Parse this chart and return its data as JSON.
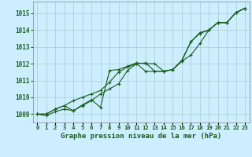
{
  "title": "Graphe pression niveau de la mer (hPa)",
  "bg_color": "#cceeff",
  "grid_color": "#aacccc",
  "line_color": "#1a5c1a",
  "x_labels": [
    "0",
    "1",
    "2",
    "3",
    "4",
    "5",
    "6",
    "7",
    "8",
    "9",
    "10",
    "11",
    "12",
    "13",
    "14",
    "15",
    "16",
    "17",
    "18",
    "19",
    "20",
    "21",
    "22",
    "23"
  ],
  "ylim": [
    1008.5,
    1015.7
  ],
  "yticks": [
    1009,
    1010,
    1011,
    1012,
    1013,
    1014,
    1015
  ],
  "line1_x": [
    0,
    1,
    2,
    3,
    4,
    5,
    6,
    7,
    8,
    9,
    10,
    11,
    12,
    13,
    14,
    15,
    16,
    17,
    18,
    19,
    20,
    21,
    22,
    23
  ],
  "line1_y": [
    1009.0,
    1009.0,
    1009.3,
    1009.5,
    1009.8,
    1010.0,
    1010.2,
    1010.4,
    1010.9,
    1011.5,
    1011.8,
    1012.0,
    1012.05,
    1011.55,
    1011.55,
    1011.65,
    1012.15,
    1013.3,
    1013.8,
    1014.0,
    1014.45,
    1014.45,
    1015.05,
    1015.3
  ],
  "line2_x": [
    0,
    1,
    2,
    3,
    4,
    5,
    6,
    7,
    8,
    9,
    10,
    11,
    12,
    13,
    14,
    15,
    16,
    17,
    18,
    19,
    20,
    21,
    22,
    23
  ],
  "line2_y": [
    1009.0,
    1008.9,
    1009.15,
    1009.3,
    1009.2,
    1009.5,
    1009.8,
    1010.2,
    1010.5,
    1010.8,
    1011.6,
    1012.0,
    1011.55,
    1011.55,
    1011.55,
    1011.65,
    1012.15,
    1012.5,
    1013.2,
    1014.0,
    1014.45,
    1014.45,
    1015.05,
    1015.3
  ],
  "line3_x": [
    0,
    1,
    2,
    3,
    4,
    5,
    6,
    7,
    8,
    9,
    10,
    11,
    12,
    13,
    14,
    15,
    16,
    17,
    18,
    19,
    20,
    21,
    22,
    23
  ],
  "line3_y": [
    1009.0,
    1009.0,
    1009.3,
    1009.5,
    1009.2,
    1009.55,
    1009.85,
    1009.4,
    1011.6,
    1011.65,
    1011.85,
    1012.05,
    1012.0,
    1012.0,
    1011.55,
    1011.65,
    1012.2,
    1013.3,
    1013.85,
    1014.0,
    1014.45,
    1014.45,
    1015.05,
    1015.3
  ]
}
